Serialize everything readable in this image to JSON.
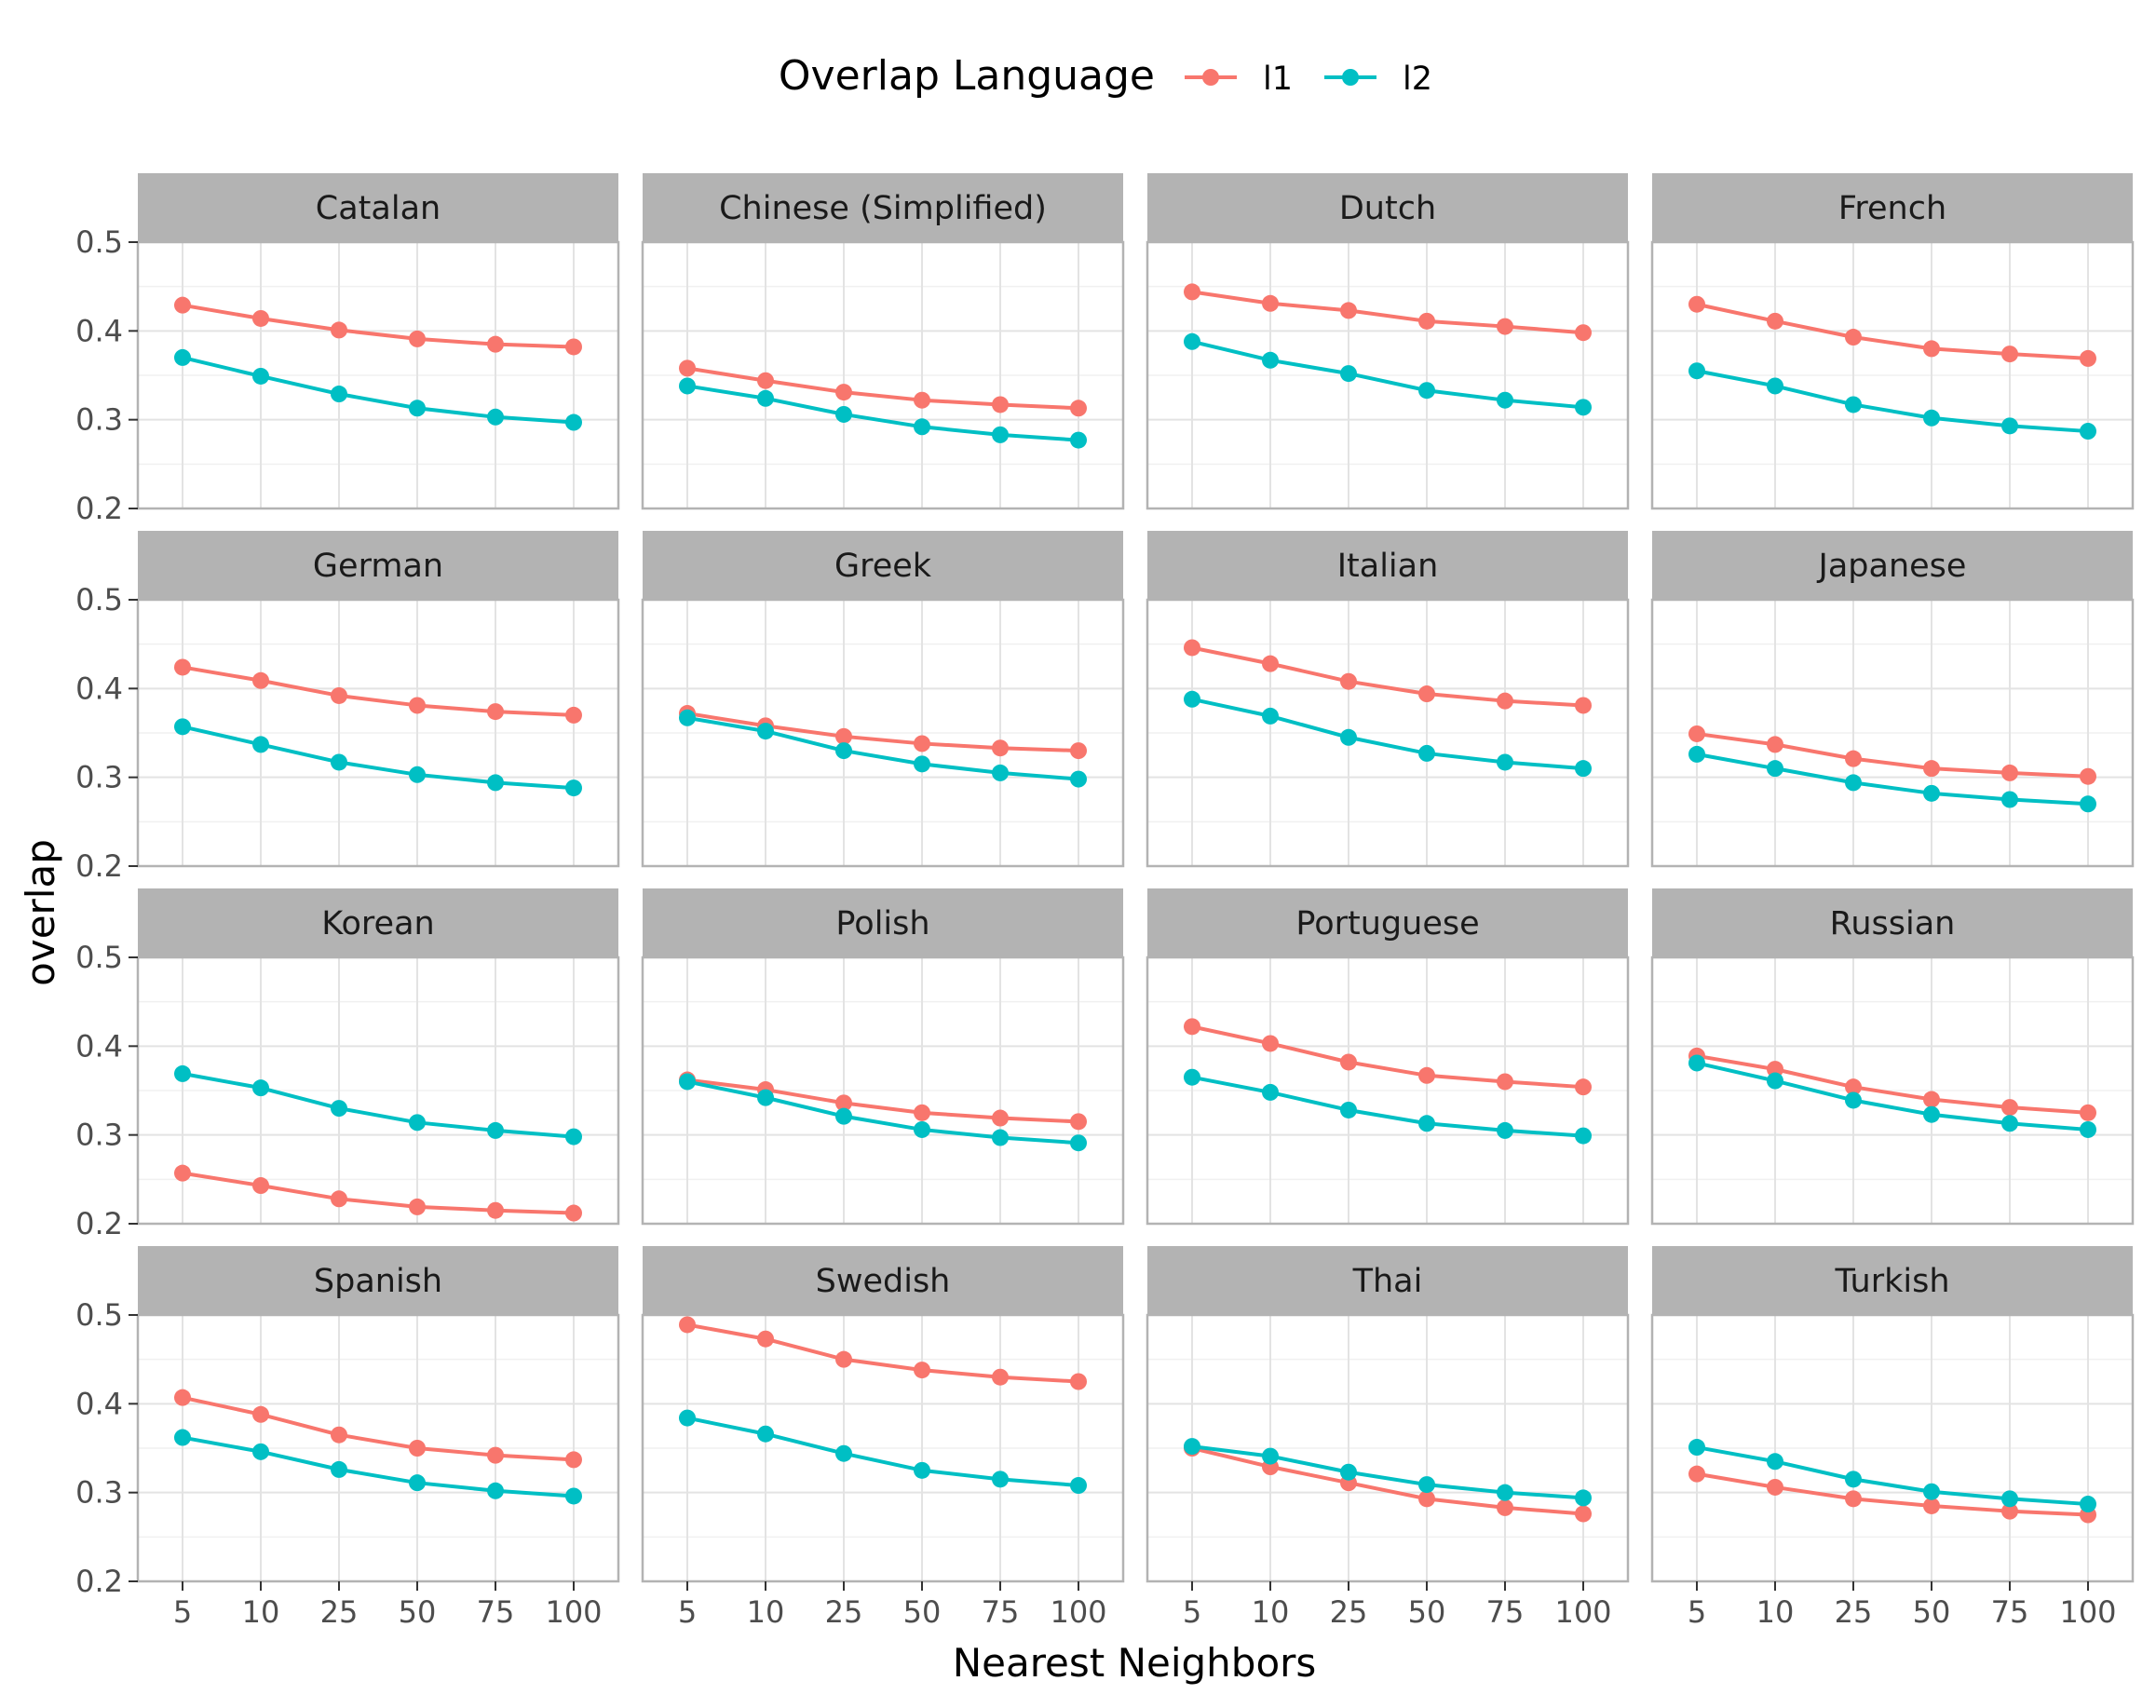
{
  "chart_data": {
    "type": "line",
    "layout": "facet-grid",
    "facet_rows": 4,
    "facet_cols": 4,
    "title": "",
    "xlabel": "Nearest Neighbors",
    "ylabel": "overlap",
    "x_categories": [
      "5",
      "10",
      "25",
      "50",
      "75",
      "100"
    ],
    "ylim": [
      0.2,
      0.5
    ],
    "y_ticks": [
      0.2,
      0.3,
      0.4,
      0.5
    ],
    "grid": true,
    "legend": {
      "title": "Overlap Language",
      "position": "top",
      "entries": [
        {
          "name": "l1",
          "color": "#F8766D"
        },
        {
          "name": "l2",
          "color": "#00BFC4"
        }
      ]
    },
    "facets": [
      {
        "name": "Catalan",
        "series": [
          {
            "name": "l1",
            "values": [
              0.429,
              0.414,
              0.401,
              0.391,
              0.385,
              0.382
            ]
          },
          {
            "name": "l2",
            "values": [
              0.37,
              0.349,
              0.329,
              0.313,
              0.303,
              0.297
            ]
          }
        ]
      },
      {
        "name": "Chinese (Simplified)",
        "series": [
          {
            "name": "l1",
            "values": [
              0.358,
              0.344,
              0.331,
              0.322,
              0.317,
              0.313
            ]
          },
          {
            "name": "l2",
            "values": [
              0.338,
              0.324,
              0.306,
              0.292,
              0.283,
              0.277
            ]
          }
        ]
      },
      {
        "name": "Dutch",
        "series": [
          {
            "name": "l1",
            "values": [
              0.444,
              0.431,
              0.423,
              0.411,
              0.405,
              0.398
            ]
          },
          {
            "name": "l2",
            "values": [
              0.388,
              0.367,
              0.352,
              0.333,
              0.322,
              0.314
            ]
          }
        ]
      },
      {
        "name": "French",
        "series": [
          {
            "name": "l1",
            "values": [
              0.43,
              0.411,
              0.393,
              0.38,
              0.374,
              0.369
            ]
          },
          {
            "name": "l2",
            "values": [
              0.355,
              0.338,
              0.317,
              0.302,
              0.293,
              0.287
            ]
          }
        ]
      },
      {
        "name": "German",
        "series": [
          {
            "name": "l1",
            "values": [
              0.424,
              0.409,
              0.392,
              0.381,
              0.374,
              0.37
            ]
          },
          {
            "name": "l2",
            "values": [
              0.357,
              0.337,
              0.317,
              0.303,
              0.294,
              0.288
            ]
          }
        ]
      },
      {
        "name": "Greek",
        "series": [
          {
            "name": "l1",
            "values": [
              0.372,
              0.358,
              0.346,
              0.338,
              0.333,
              0.33
            ]
          },
          {
            "name": "l2",
            "values": [
              0.367,
              0.352,
              0.33,
              0.315,
              0.305,
              0.298
            ]
          }
        ]
      },
      {
        "name": "Italian",
        "series": [
          {
            "name": "l1",
            "values": [
              0.446,
              0.428,
              0.408,
              0.394,
              0.386,
              0.381
            ]
          },
          {
            "name": "l2",
            "values": [
              0.388,
              0.369,
              0.345,
              0.327,
              0.317,
              0.31
            ]
          }
        ]
      },
      {
        "name": "Japanese",
        "series": [
          {
            "name": "l1",
            "values": [
              0.349,
              0.337,
              0.321,
              0.31,
              0.305,
              0.301
            ]
          },
          {
            "name": "l2",
            "values": [
              0.326,
              0.31,
              0.294,
              0.282,
              0.275,
              0.27
            ]
          }
        ]
      },
      {
        "name": "Korean",
        "series": [
          {
            "name": "l1",
            "values": [
              0.257,
              0.243,
              0.228,
              0.219,
              0.215,
              0.212
            ]
          },
          {
            "name": "l2",
            "values": [
              0.369,
              0.353,
              0.33,
              0.314,
              0.305,
              0.298
            ]
          }
        ]
      },
      {
        "name": "Polish",
        "series": [
          {
            "name": "l1",
            "values": [
              0.362,
              0.351,
              0.336,
              0.325,
              0.319,
              0.315
            ]
          },
          {
            "name": "l2",
            "values": [
              0.36,
              0.342,
              0.321,
              0.306,
              0.297,
              0.291
            ]
          }
        ]
      },
      {
        "name": "Portuguese",
        "series": [
          {
            "name": "l1",
            "values": [
              0.422,
              0.403,
              0.382,
              0.367,
              0.36,
              0.354
            ]
          },
          {
            "name": "l2",
            "values": [
              0.365,
              0.348,
              0.328,
              0.313,
              0.305,
              0.299
            ]
          }
        ]
      },
      {
        "name": "Russian",
        "series": [
          {
            "name": "l1",
            "values": [
              0.389,
              0.374,
              0.354,
              0.34,
              0.331,
              0.325
            ]
          },
          {
            "name": "l2",
            "values": [
              0.381,
              0.361,
              0.339,
              0.323,
              0.313,
              0.306
            ]
          }
        ]
      },
      {
        "name": "Spanish",
        "series": [
          {
            "name": "l1",
            "values": [
              0.407,
              0.388,
              0.365,
              0.35,
              0.342,
              0.337
            ]
          },
          {
            "name": "l2",
            "values": [
              0.362,
              0.346,
              0.326,
              0.311,
              0.302,
              0.296
            ]
          }
        ]
      },
      {
        "name": "Swedish",
        "series": [
          {
            "name": "l1",
            "values": [
              0.489,
              0.473,
              0.45,
              0.438,
              0.43,
              0.425
            ]
          },
          {
            "name": "l2",
            "values": [
              0.384,
              0.366,
              0.344,
              0.325,
              0.315,
              0.308
            ]
          }
        ]
      },
      {
        "name": "Thai",
        "series": [
          {
            "name": "l1",
            "values": [
              0.35,
              0.329,
              0.311,
              0.293,
              0.283,
              0.276
            ]
          },
          {
            "name": "l2",
            "values": [
              0.352,
              0.341,
              0.323,
              0.309,
              0.3,
              0.294
            ]
          }
        ]
      },
      {
        "name": "Turkish",
        "series": [
          {
            "name": "l1",
            "values": [
              0.321,
              0.306,
              0.293,
              0.285,
              0.279,
              0.275
            ]
          },
          {
            "name": "l2",
            "values": [
              0.351,
              0.335,
              0.315,
              0.301,
              0.293,
              0.287
            ]
          }
        ]
      }
    ]
  }
}
